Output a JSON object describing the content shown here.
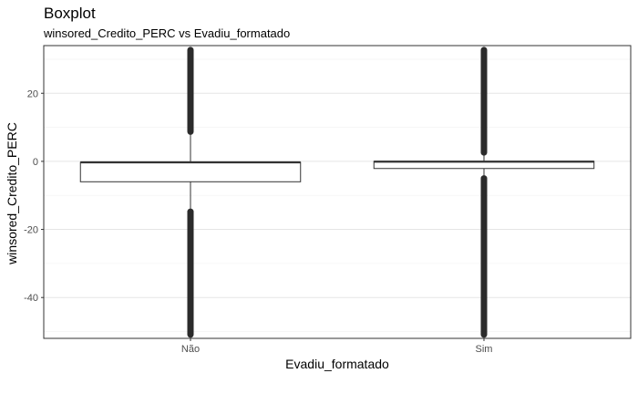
{
  "chart_data": {
    "type": "boxplot",
    "title": "Boxplot",
    "subtitle": "winsored_Credito_PERC vs Evadiu_formatado",
    "xlabel": "Evadiu_formatado",
    "ylabel": "winsored_Credito_PERC",
    "categories": [
      "Não",
      "Sim"
    ],
    "ylim": [
      -52,
      34
    ],
    "yticks": [
      -40,
      -20,
      0,
      20
    ],
    "grid": true,
    "theme": "bw",
    "boxes": [
      {
        "category": "Não",
        "q1": -6.0,
        "median": -0.3,
        "q3": -0.3,
        "whisker_low": -14.5,
        "whisker_high": 8.5,
        "outliers_low": [
          -50.9,
          -14.8
        ],
        "outliers_high": [
          8.7,
          32.7
        ]
      },
      {
        "category": "Sim",
        "q1": -2.1,
        "median": -0.1,
        "q3": 0.0,
        "whisker_low": -4.9,
        "whisker_high": 2.5,
        "outliers_low": [
          -50.9,
          -5.0
        ],
        "outliers_high": [
          2.6,
          32.7
        ]
      }
    ]
  }
}
